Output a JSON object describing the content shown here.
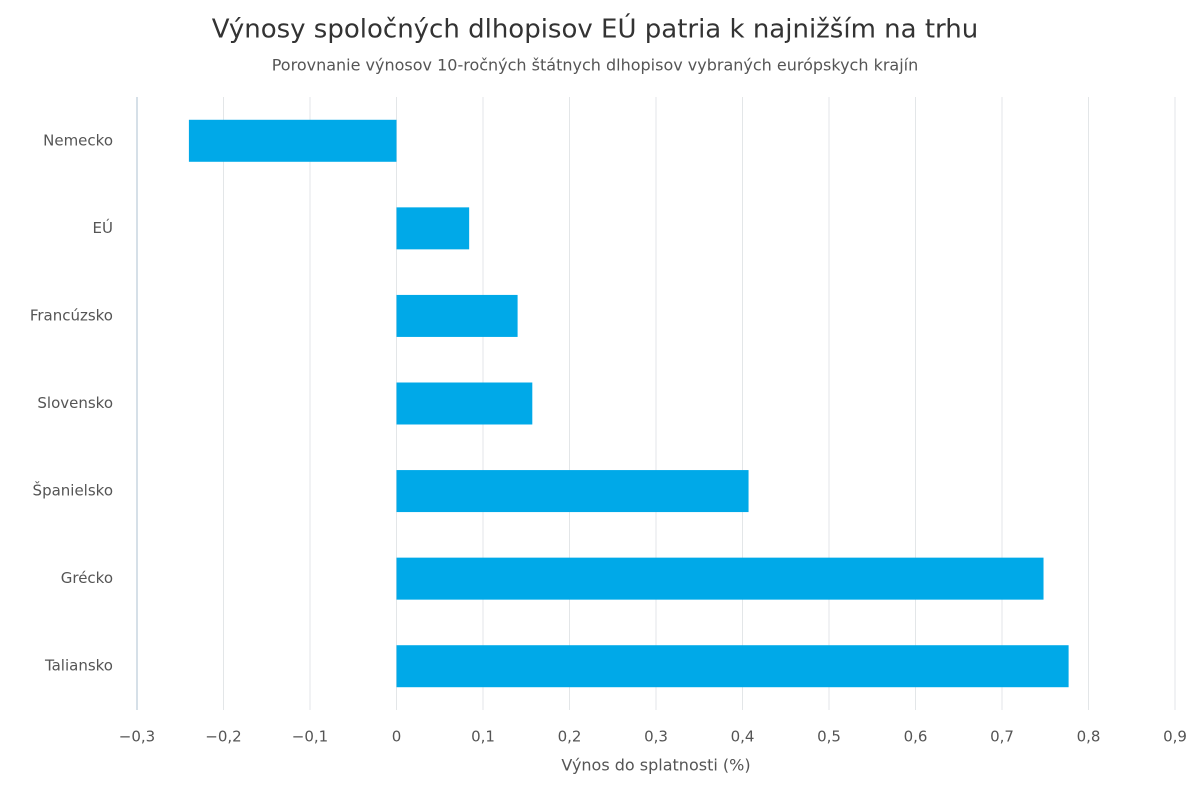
{
  "chart_data": {
    "type": "hbar",
    "title": "Výnosy spoločných dlhopisov EÚ patria k najnižším na trhu",
    "subtitle": "Porovnanie výnosov 10-ročných štátnych dlhopisov vybraných európskych krajín",
    "x_label": "Výnos do splatnosti (%)",
    "categories": [
      "Nemecko",
      "EÚ",
      "Francúzsko",
      "Slovensko",
      "Španielsko",
      "Grécko",
      "Taliansko"
    ],
    "values": [
      -0.24,
      0.084,
      0.14,
      0.157,
      0.407,
      0.748,
      0.777
    ],
    "color": "#00a9e8",
    "xlim": [
      -0.3,
      0.9
    ],
    "xticks": [
      {
        "value": -0.3,
        "label": "−0,3"
      },
      {
        "value": -0.2,
        "label": "−0,2"
      },
      {
        "value": -0.1,
        "label": "−0,1"
      },
      0,
      {
        "value": 0.1,
        "label": "0,1"
      },
      {
        "value": 0.2,
        "label": "0,2"
      },
      {
        "value": 0.3,
        "label": "0,3"
      },
      {
        "value": 0.4,
        "label": "0,4"
      },
      {
        "value": 0.5,
        "label": "0,5"
      },
      {
        "value": 0.6,
        "label": "0,6"
      },
      {
        "value": 0.7,
        "label": "0,7"
      },
      {
        "value": 0.8,
        "label": "0,8"
      },
      {
        "value": 0.9,
        "label": "0,9"
      }
    ],
    "grid": true
  }
}
